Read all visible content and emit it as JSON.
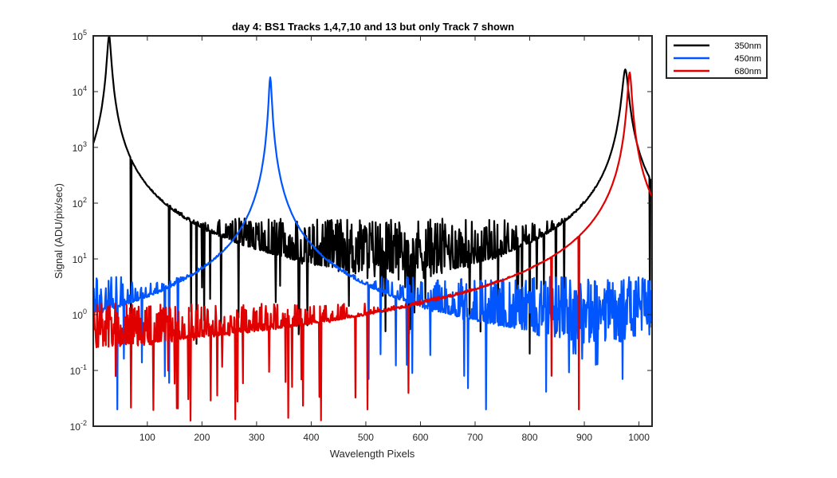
{
  "chart_data": {
    "type": "line",
    "title": "day 4: BS1   Tracks 1,4,7,10 and 13 but only Track 7 shown",
    "xlabel": "Wavelength Pixels",
    "ylabel": "Signal (ADU/pix/sec)",
    "xlim": [
      1,
      1024
    ],
    "ylim": [
      0.01,
      100000
    ],
    "yscale": "log",
    "grid": false,
    "legend_position": "outside-top-right",
    "x_ticks": [
      100,
      200,
      300,
      400,
      500,
      600,
      700,
      800,
      900,
      1000
    ],
    "y_ticks": [
      {
        "base": "10",
        "exp": "-2",
        "value": 0.01
      },
      {
        "base": "10",
        "exp": "-1",
        "value": 0.1
      },
      {
        "base": "10",
        "exp": "0",
        "value": 1
      },
      {
        "base": "10",
        "exp": "1",
        "value": 10
      },
      {
        "base": "10",
        "exp": "2",
        "value": 100
      },
      {
        "base": "10",
        "exp": "3",
        "value": 1000
      },
      {
        "base": "10",
        "exp": "4",
        "value": 10000
      },
      {
        "base": "10",
        "exp": "5",
        "value": 100000
      }
    ],
    "series": [
      {
        "name": "350nm",
        "color": "#000000",
        "baseline": 15,
        "noise_decades": 0.55,
        "peaks": [
          {
            "x": 30,
            "y": 100000,
            "width": 4
          },
          {
            "x": 975,
            "y": 25000,
            "width": 6
          }
        ],
        "dips": [
          [
            70,
            0.09
          ],
          [
            140,
            0.25
          ],
          [
            190,
            0.3
          ],
          [
            710,
            0.5
          ],
          [
            800,
            0.2
          ],
          [
            1020,
            0.6
          ]
        ]
      },
      {
        "name": "450nm",
        "color": "#0055ff",
        "baseline": 1.2,
        "noise_decades": 0.6,
        "peaks": [
          {
            "x": 325,
            "y": 18000,
            "width": 3
          }
        ],
        "dips": [
          [
            45,
            0.02
          ],
          [
            140,
            0.06
          ],
          [
            505,
            0.07
          ],
          [
            585,
            0.09
          ],
          [
            680,
            0.08
          ],
          [
            720,
            0.02
          ],
          [
            970,
            0.07
          ]
        ]
      },
      {
        "name": "680nm",
        "color": "#e00000",
        "baseline": 0.5,
        "noise_decades": 0.5,
        "peaks": [
          {
            "x": 983,
            "y": 22000,
            "width": 4
          }
        ],
        "dips": [
          [
            503,
            0.02
          ],
          [
            890,
            0.02
          ],
          [
            840,
            0.08
          ]
        ]
      }
    ]
  }
}
